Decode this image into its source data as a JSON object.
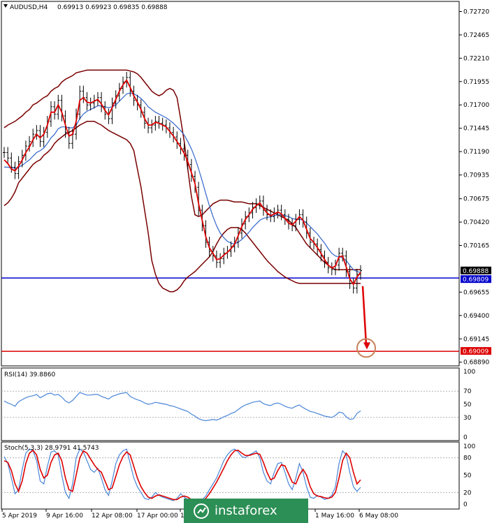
{
  "header": {
    "symbol": "AUDUSD,H4",
    "ohlc": "0.69913 0.69923 0.69835 0.69888",
    "rsi_label": "RSI(14) 39.8860",
    "stoch_label": "Stoch(5,3,3) 28.9791 41.5743"
  },
  "watermark": {
    "text": "instaforex"
  },
  "colors": {
    "price_bars": "#000000",
    "bollinger": "#7a0000",
    "ma_fast": "#dd0000",
    "ma_slow": "#3366cc",
    "support": "#0000cc",
    "target": "#dd0000",
    "target_circle": "#c8825a",
    "rsi": "#4a86d8",
    "stoch_main": "#4a86d8",
    "stoch_signal": "#dd0000"
  },
  "chart_data": [
    {
      "type": "candlestick",
      "title": "AUDUSD,H4",
      "ylim": [
        0.6888,
        0.728
      ],
      "y_ticks": [
        "0.72720",
        "0.72465",
        "0.72210",
        "0.71955",
        "0.71700",
        "0.71445",
        "0.71190",
        "0.70935",
        "0.70675",
        "0.70420",
        "0.70165",
        "0.69655",
        "0.69400",
        "0.69145",
        "0.68890"
      ],
      "price_labels": [
        {
          "name": "current",
          "value": "0.69888"
        },
        {
          "name": "support",
          "value": "0.69809"
        },
        {
          "name": "target",
          "value": "0.69009"
        }
      ],
      "horizontal_lines": [
        {
          "name": "support",
          "value": 0.69809
        },
        {
          "name": "target",
          "value": 0.69009
        }
      ],
      "x_tick_labels": [
        "5 Apr 2019",
        "9 Apr 16:00",
        "12 Apr 08:00",
        "17 Apr 00:00",
        "1",
        "1 May 16:00",
        "6 May 08:00"
      ],
      "annotation": {
        "type": "arrow",
        "from": 0.6972,
        "to": 0.6903
      },
      "series": [
        {
          "name": "close",
          "values": [
            0.7118,
            0.7112,
            0.7102,
            0.7095,
            0.7108,
            0.7115,
            0.7125,
            0.713,
            0.7138,
            0.7142,
            0.713,
            0.714,
            0.7152,
            0.7168,
            0.716,
            0.7175,
            0.7158,
            0.714,
            0.7128,
            0.7138,
            0.716,
            0.7185,
            0.7178,
            0.717,
            0.7172,
            0.7175,
            0.7178,
            0.7168,
            0.716,
            0.7155,
            0.7172,
            0.718,
            0.7188,
            0.7195,
            0.72,
            0.7185,
            0.7175,
            0.717,
            0.7162,
            0.715,
            0.7145,
            0.7148,
            0.7152,
            0.715,
            0.7148,
            0.7145,
            0.714,
            0.7135,
            0.7128,
            0.7122,
            0.7115,
            0.7105,
            0.7092,
            0.708,
            0.7055,
            0.7038,
            0.702,
            0.701,
            0.7005,
            0.6998,
            0.7002,
            0.7008,
            0.701,
            0.7015,
            0.702,
            0.703,
            0.704,
            0.7048,
            0.7052,
            0.7058,
            0.7062,
            0.7065,
            0.7055,
            0.705,
            0.7048,
            0.7052,
            0.7055,
            0.705,
            0.7045,
            0.704,
            0.7038,
            0.7045,
            0.705,
            0.7042,
            0.703,
            0.702,
            0.7018,
            0.7012,
            0.7005,
            0.6998,
            0.6992,
            0.699,
            0.6995,
            0.7008,
            0.7005,
            0.6988,
            0.6975,
            0.697,
            0.6985,
            0.6989
          ]
        },
        {
          "name": "bollinger_upper",
          "values": [
            0.7145,
            0.7148,
            0.715,
            0.7152,
            0.7155,
            0.7158,
            0.7162,
            0.7165,
            0.717,
            0.7172,
            0.7175,
            0.7178,
            0.718,
            0.7185,
            0.7188,
            0.719,
            0.7195,
            0.7198,
            0.72,
            0.7202,
            0.7205,
            0.7206,
            0.7207,
            0.7208,
            0.7208,
            0.7208,
            0.7208,
            0.7208,
            0.7208,
            0.7208,
            0.7208,
            0.7208,
            0.7208,
            0.7208,
            0.7208,
            0.7207,
            0.7206,
            0.7204,
            0.72,
            0.7195,
            0.719,
            0.7185,
            0.7182,
            0.718,
            0.7182,
            0.7186,
            0.7188,
            0.7186,
            0.7178,
            0.7155,
            0.713,
            0.71,
            0.707,
            0.705,
            0.7048,
            0.705,
            0.7054,
            0.7058,
            0.7062,
            0.7064,
            0.7066,
            0.7066,
            0.7066,
            0.7065,
            0.7064,
            0.7064,
            0.7064,
            0.7063,
            0.7062,
            0.7062,
            0.7062,
            0.706,
            0.7058,
            0.7056,
            0.7054,
            0.7052,
            0.705,
            0.7048,
            0.7046,
            0.7044,
            0.704,
            0.7036,
            0.703,
            0.7024,
            0.7018,
            0.7014,
            0.701,
            0.7006,
            0.7002,
            0.6998,
            0.6995,
            0.6992,
            0.699,
            0.699,
            0.699,
            0.699,
            0.699,
            0.699,
            0.699,
            0.699
          ]
        },
        {
          "name": "bollinger_lower",
          "values": [
            0.706,
            0.7063,
            0.7068,
            0.7075,
            0.7085,
            0.709,
            0.7095,
            0.71,
            0.7105,
            0.7108,
            0.711,
            0.7115,
            0.7118,
            0.7122,
            0.7128,
            0.7132,
            0.7135,
            0.7138,
            0.714,
            0.7142,
            0.7145,
            0.7148,
            0.715,
            0.7152,
            0.7152,
            0.7152,
            0.715,
            0.7148,
            0.7145,
            0.7142,
            0.714,
            0.7138,
            0.7136,
            0.7134,
            0.7132,
            0.7128,
            0.712,
            0.71,
            0.708,
            0.7055,
            0.703,
            0.7,
            0.6985,
            0.6975,
            0.697,
            0.6968,
            0.6966,
            0.6966,
            0.6968,
            0.6972,
            0.6978,
            0.6982,
            0.6985,
            0.6988,
            0.6992,
            0.6996,
            0.7,
            0.7004,
            0.701,
            0.7018,
            0.7025,
            0.703,
            0.7034,
            0.7036,
            0.7036,
            0.7036,
            0.7034,
            0.703,
            0.7025,
            0.702,
            0.7015,
            0.701,
            0.7005,
            0.7,
            0.6996,
            0.6992,
            0.6988,
            0.6985,
            0.6982,
            0.698,
            0.6978,
            0.6976,
            0.6975,
            0.6975,
            0.6975,
            0.6975,
            0.6975,
            0.6975,
            0.6975,
            0.6975,
            0.6975,
            0.6975,
            0.6975,
            0.6975,
            0.6975,
            0.6975,
            0.6975,
            0.6975,
            0.6975,
            0.6975
          ]
        },
        {
          "name": "ma_fast",
          "values": [
            0.711,
            0.7106,
            0.71,
            0.7098,
            0.7103,
            0.711,
            0.7118,
            0.7124,
            0.7132,
            0.7138,
            0.7134,
            0.7138,
            0.7148,
            0.7162,
            0.7162,
            0.717,
            0.7162,
            0.7148,
            0.7136,
            0.7138,
            0.7152,
            0.7175,
            0.7178,
            0.7173,
            0.7172,
            0.7174,
            0.7176,
            0.7171,
            0.7164,
            0.7159,
            0.7167,
            0.7176,
            0.7185,
            0.7192,
            0.7197,
            0.7189,
            0.718,
            0.7173,
            0.7165,
            0.7155,
            0.7148,
            0.7148,
            0.7151,
            0.715,
            0.7148,
            0.7146,
            0.7141,
            0.7136,
            0.713,
            0.7124,
            0.7117,
            0.7108,
            0.7096,
            0.7084,
            0.7062,
            0.7044,
            0.7026,
            0.7014,
            0.7008,
            0.7001,
            0.7002,
            0.7006,
            0.7009,
            0.7013,
            0.7018,
            0.7027,
            0.7037,
            0.7045,
            0.705,
            0.7056,
            0.706,
            0.7063,
            0.7057,
            0.7052,
            0.7049,
            0.7051,
            0.7053,
            0.7051,
            0.7046,
            0.7041,
            0.7039,
            0.7043,
            0.7048,
            0.7044,
            0.7034,
            0.7024,
            0.702,
            0.7014,
            0.7008,
            0.7001,
            0.6995,
            0.6992,
            0.6994,
            0.7004,
            0.7005,
            0.6993,
            0.698,
            0.6974,
            0.6982,
            0.6987
          ]
        },
        {
          "name": "ma_slow",
          "values": [
            0.7102,
            0.7102,
            0.7101,
            0.7101,
            0.7102,
            0.7104,
            0.7107,
            0.711,
            0.7114,
            0.7118,
            0.712,
            0.7123,
            0.7128,
            0.7134,
            0.7138,
            0.7144,
            0.7146,
            0.7146,
            0.7145,
            0.7145,
            0.7148,
            0.7155,
            0.716,
            0.7163,
            0.7165,
            0.7167,
            0.7169,
            0.7169,
            0.7168,
            0.7167,
            0.7168,
            0.717,
            0.7174,
            0.7178,
            0.7182,
            0.7183,
            0.7182,
            0.718,
            0.7177,
            0.7173,
            0.7168,
            0.7165,
            0.7162,
            0.716,
            0.7158,
            0.7156,
            0.7153,
            0.715,
            0.7146,
            0.7142,
            0.7137,
            0.713,
            0.7122,
            0.7112,
            0.71,
            0.7087,
            0.7073,
            0.706,
            0.7048,
            0.7038,
            0.703,
            0.7025,
            0.7021,
            0.7019,
            0.7018,
            0.702,
            0.7023,
            0.7027,
            0.7031,
            0.7036,
            0.704,
            0.7044,
            0.7046,
            0.7047,
            0.7048,
            0.7049,
            0.705,
            0.705,
            0.7049,
            0.7048,
            0.7046,
            0.7045,
            0.7045,
            0.7044,
            0.7041,
            0.7037,
            0.7033,
            0.7029,
            0.7024,
            0.7019,
            0.7013,
            0.7008,
            0.7005,
            0.7004,
            0.7003,
            0.7,
            0.6995,
            0.699,
            0.6988,
            0.6987
          ]
        }
      ]
    },
    {
      "type": "line",
      "title": "RSI(14) 39.8860",
      "ylim": [
        0,
        100
      ],
      "y_ticks": [
        "100",
        "70",
        "50",
        "30",
        "0"
      ],
      "levels": [
        70,
        30
      ],
      "series": [
        {
          "name": "RSI(14)",
          "values": [
            55,
            52,
            50,
            47,
            54,
            57,
            60,
            62,
            63,
            65,
            60,
            63,
            66,
            67,
            64,
            65,
            61,
            55,
            52,
            56,
            62,
            68,
            66,
            64,
            64,
            65,
            65,
            62,
            60,
            58,
            62,
            64,
            66,
            67,
            68,
            62,
            59,
            57,
            55,
            52,
            50,
            51,
            53,
            52,
            51,
            50,
            48,
            47,
            45,
            43,
            41,
            39,
            35,
            32,
            28,
            26,
            25,
            26,
            27,
            26,
            28,
            31,
            33,
            36,
            38,
            42,
            46,
            49,
            51,
            53,
            54,
            55,
            51,
            49,
            48,
            51,
            52,
            50,
            47,
            45,
            44,
            47,
            49,
            45,
            42,
            39,
            38,
            36,
            34,
            32,
            31,
            30,
            33,
            38,
            37,
            31,
            27,
            28,
            36,
            40
          ]
        }
      ]
    },
    {
      "type": "line",
      "title": "Stoch(5,3,3) 28.9791 41.5743",
      "ylim": [
        0,
        100
      ],
      "y_ticks": [
        "100",
        "80",
        "50",
        "20",
        "0"
      ],
      "levels": [
        80,
        20
      ],
      "series": [
        {
          "name": "main",
          "values": [
            82,
            70,
            45,
            18,
            25,
            60,
            88,
            95,
            92,
            75,
            40,
            35,
            65,
            90,
            92,
            85,
            50,
            20,
            10,
            35,
            80,
            95,
            90,
            75,
            60,
            55,
            62,
            45,
            25,
            15,
            40,
            70,
            85,
            92,
            95,
            70,
            45,
            30,
            20,
            10,
            8,
            12,
            20,
            15,
            12,
            10,
            8,
            6,
            10,
            18,
            12,
            8,
            6,
            4,
            5,
            8,
            14,
            25,
            35,
            45,
            60,
            75,
            85,
            92,
            95,
            90,
            82,
            80,
            85,
            88,
            92,
            80,
            55,
            40,
            35,
            55,
            70,
            72,
            55,
            35,
            25,
            45,
            70,
            55,
            30,
            12,
            10,
            15,
            12,
            8,
            10,
            15,
            30,
            70,
            92,
            85,
            55,
            30,
            22,
            29
          ]
        },
        {
          "name": "signal",
          "values": [
            75,
            72,
            58,
            35,
            22,
            40,
            70,
            88,
            93,
            85,
            60,
            45,
            50,
            72,
            85,
            88,
            75,
            45,
            25,
            22,
            50,
            80,
            92,
            88,
            78,
            68,
            60,
            55,
            40,
            25,
            28,
            48,
            68,
            82,
            90,
            85,
            65,
            45,
            30,
            20,
            12,
            10,
            14,
            16,
            14,
            12,
            10,
            8,
            8,
            12,
            14,
            12,
            8,
            6,
            5,
            6,
            10,
            18,
            28,
            38,
            50,
            62,
            75,
            85,
            92,
            93,
            88,
            84,
            84,
            86,
            88,
            86,
            72,
            55,
            42,
            45,
            58,
            68,
            66,
            52,
            38,
            35,
            50,
            60,
            50,
            30,
            18,
            14,
            13,
            11,
            10,
            12,
            20,
            45,
            75,
            88,
            80,
            55,
            35,
            42
          ]
        }
      ]
    }
  ]
}
